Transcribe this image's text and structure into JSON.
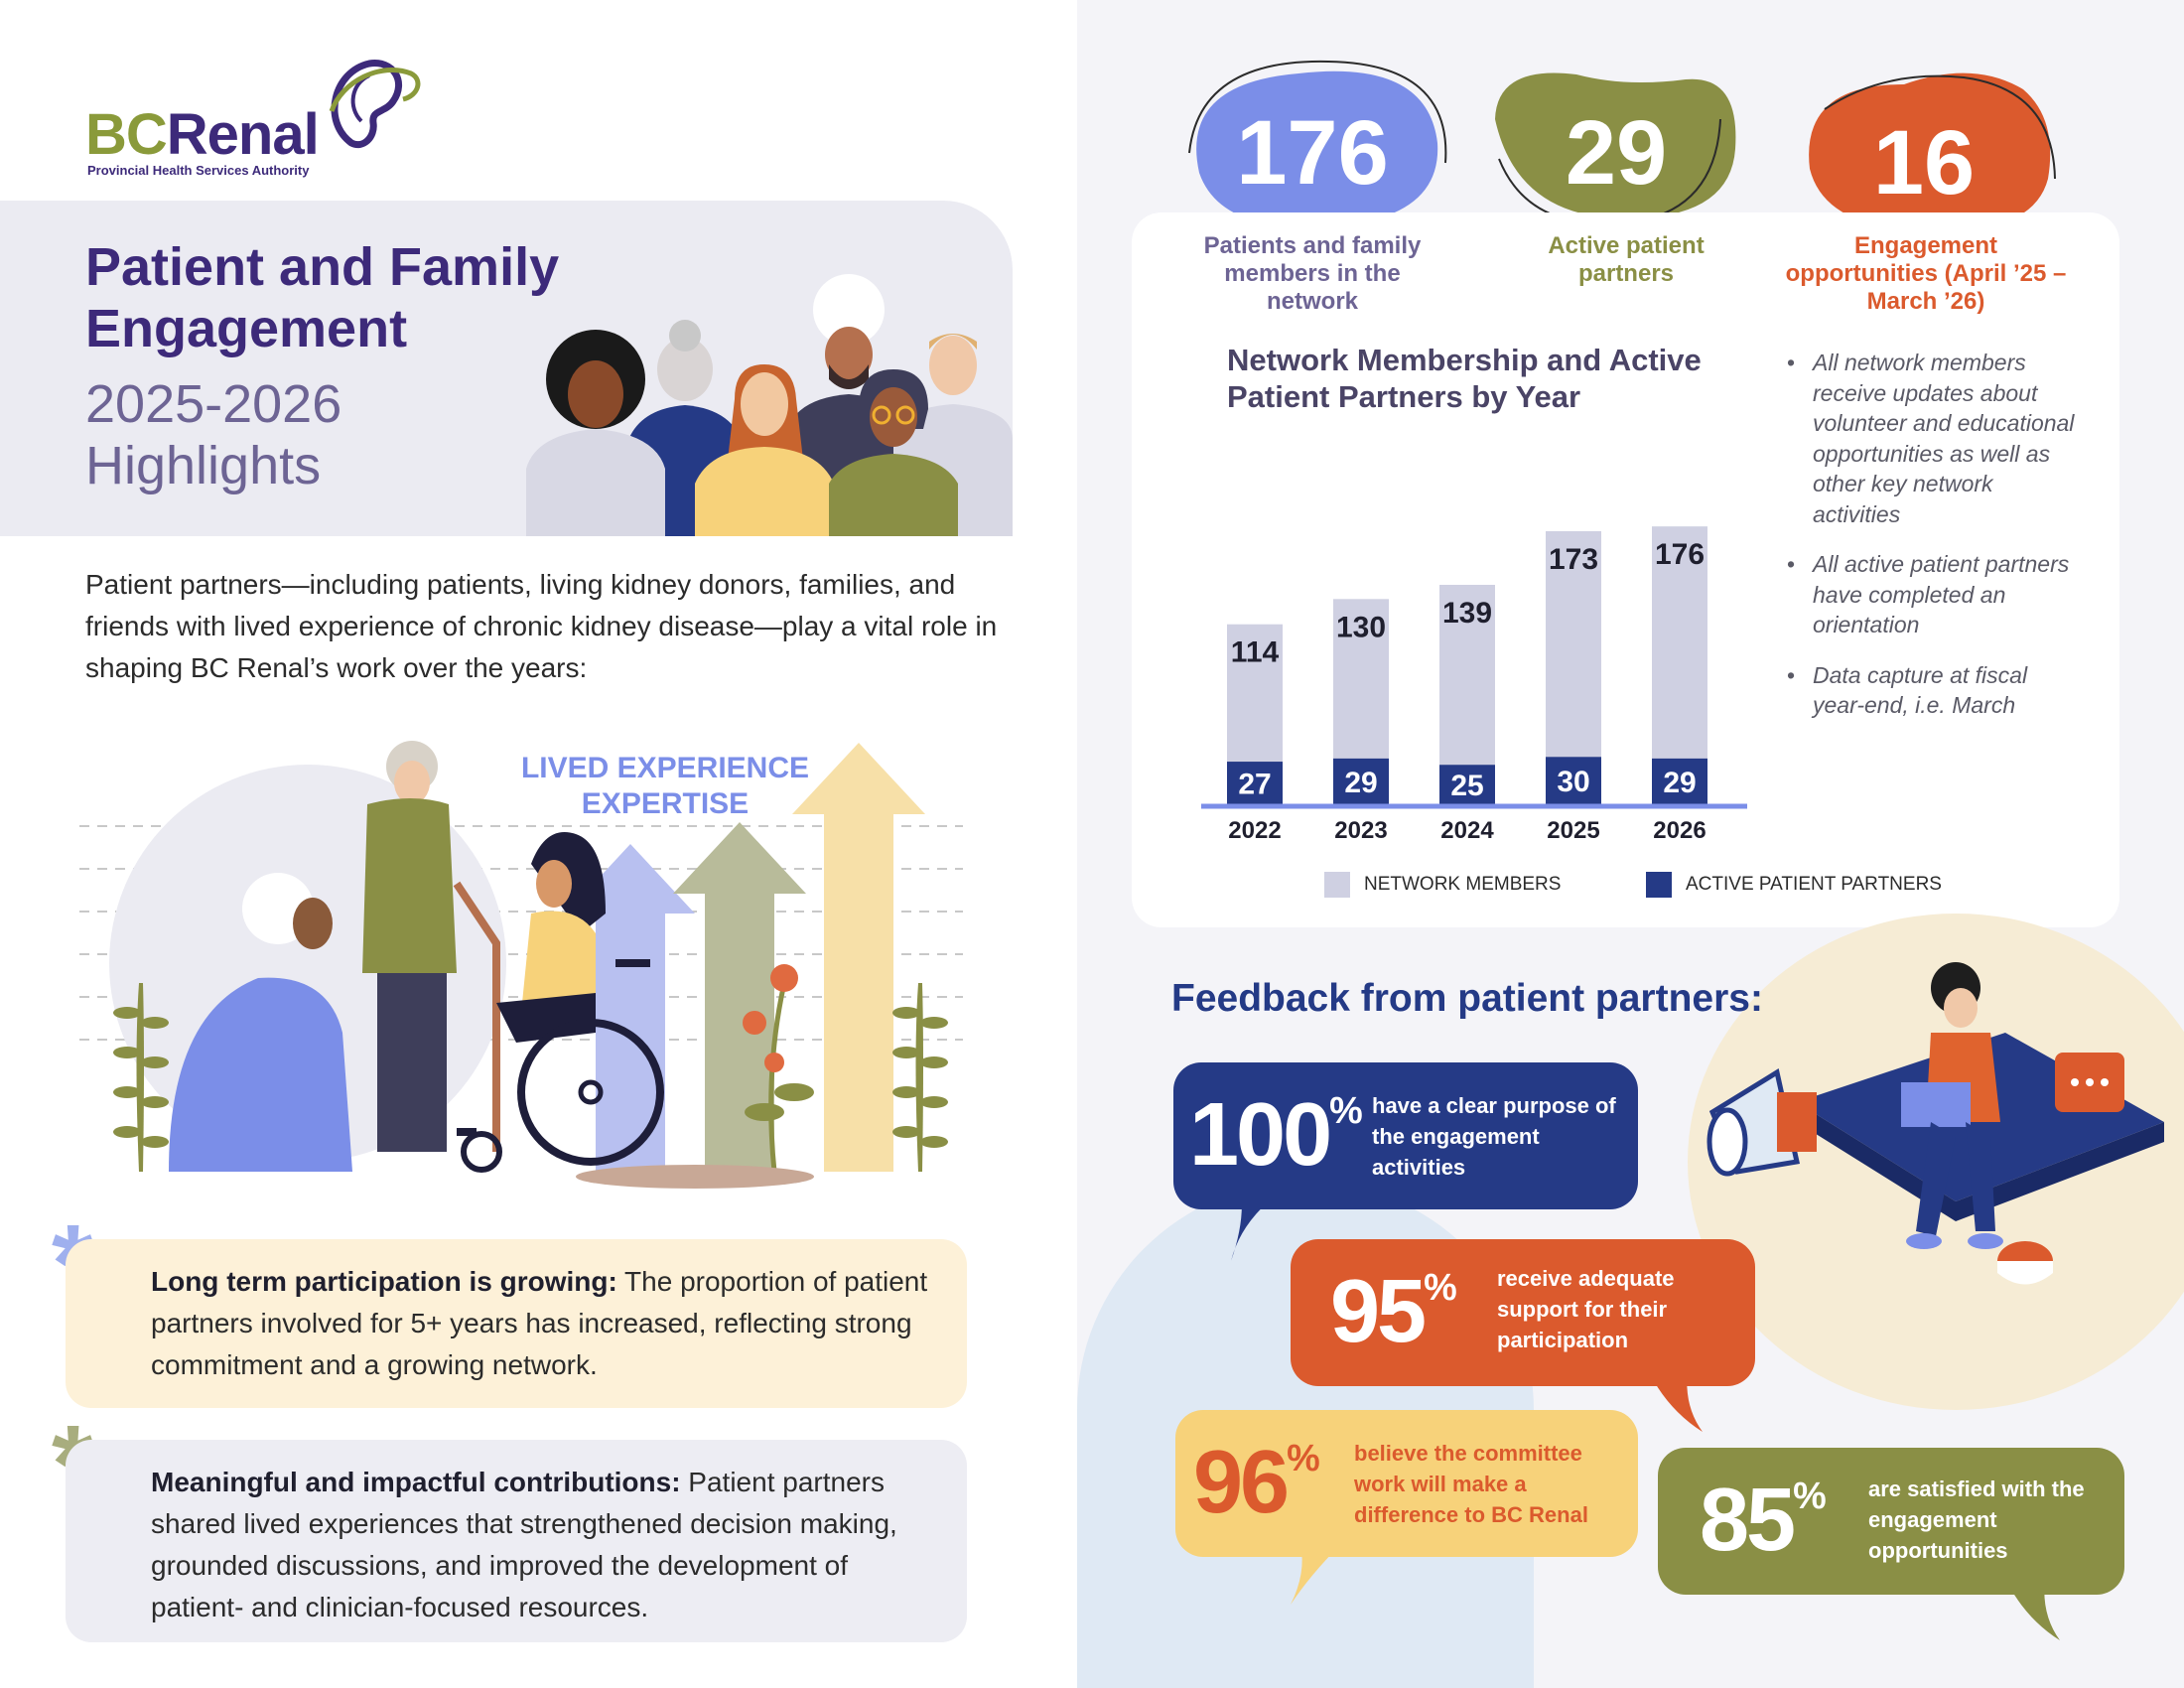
{
  "logo": {
    "bc": "BC",
    "renal": "Renal",
    "sub": "Provincial Health Services Authority"
  },
  "header": {
    "title": "Patient and Family Engagement",
    "subtitle": "2025-2026 Highlights"
  },
  "intro": "Patient partners—including patients, living kidney donors, families, and friends with lived experience of chronic kidney disease—play a vital role in shaping BC Renal’s work over the years:",
  "illustration": {
    "label_line1": "LIVED EXPERIENCE",
    "label_line2": "EXPERTISE"
  },
  "callouts": [
    {
      "heading": "Long term participation is growing:",
      "body": " The proportion of patient partners involved for 5+ years has increased, reflecting strong commitment and a growing network."
    },
    {
      "heading": "Meaningful and impactful contributions:",
      "body": " Patient partners shared lived experiences that strengthened decision making, grounded discussions, and improved the development of patient- and clinician-focused resources."
    }
  ],
  "stats": [
    {
      "value": "176",
      "label": "Patients and family members in the network",
      "color": "#7b8ee8"
    },
    {
      "value": "29",
      "label": "Active patient partners",
      "color": "#8a8f45"
    },
    {
      "value": "16",
      "label": "Engagement opportunities (April ’25 – March ’26)",
      "color": "#db5a2d"
    }
  ],
  "chart_data": {
    "type": "bar",
    "title": "Network Membership and Active Patient Partners by Year",
    "categories": [
      "2022",
      "2023",
      "2024",
      "2025",
      "2026"
    ],
    "series": [
      {
        "name": "NETWORK MEMBERS",
        "values": [
          114,
          130,
          139,
          173,
          176
        ],
        "color": "#cfd0e2"
      },
      {
        "name": "ACTIVE PATIENT PARTNERS",
        "values": [
          27,
          29,
          25,
          30,
          29
        ],
        "color": "#253a86"
      }
    ]
  },
  "notes": [
    "All network members receive updates about volunteer and educational opportunities as well as other key network activities",
    "All active patient partners have completed an orientation",
    "Data capture at fiscal year-end, i.e. March"
  ],
  "feedback": {
    "title": "Feedback from patient partners:",
    "items": [
      {
        "value": "100",
        "unit": "%",
        "text": "have a clear purpose of the engagement activities",
        "color": "#253a86"
      },
      {
        "value": "95",
        "unit": "%",
        "text": "receive adequate support for their participation",
        "color": "#db5a2d"
      },
      {
        "value": "96",
        "unit": "%",
        "text": "believe the committee work will make a difference to BC Renal",
        "color": "#f7d27a"
      },
      {
        "value": "85",
        "unit": "%",
        "text": "are satisfied with the engagement opportunities",
        "color": "#8a8f45"
      }
    ]
  },
  "colors": {
    "brand_purple": "#3d2a7a",
    "brand_green": "#8a9a3a",
    "navy": "#253a86",
    "orange": "#db5a2d",
    "yellow": "#f7d27a",
    "olive": "#8a8f45",
    "periwinkle": "#7b8ee8"
  }
}
